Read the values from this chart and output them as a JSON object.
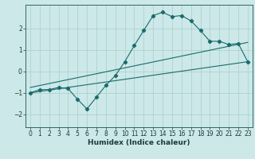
{
  "xlabel": "Humidex (Indice chaleur)",
  "background_color": "#cce8e8",
  "grid_color": "#aacece",
  "line_color": "#1a6b6b",
  "x_values": [
    0,
    1,
    2,
    3,
    4,
    5,
    6,
    7,
    8,
    9,
    10,
    11,
    12,
    13,
    14,
    15,
    16,
    17,
    18,
    19,
    20,
    21,
    22,
    23
  ],
  "main_y": [
    -1.0,
    -0.85,
    -0.85,
    -0.75,
    -0.8,
    -1.3,
    -1.75,
    -1.2,
    -0.65,
    -0.2,
    0.45,
    1.2,
    1.9,
    2.6,
    2.75,
    2.55,
    2.6,
    2.35,
    1.9,
    1.4,
    1.4,
    1.25,
    1.3,
    0.45
  ],
  "straight_line1_x": [
    0,
    23
  ],
  "straight_line1_y": [
    -1.0,
    0.45
  ],
  "straight_line2_x": [
    0,
    23
  ],
  "straight_line2_y": [
    -0.75,
    1.35
  ],
  "ylim": [
    -2.6,
    3.1
  ],
  "xlim": [
    -0.5,
    23.5
  ],
  "yticks": [
    -2,
    -1,
    0,
    1,
    2
  ],
  "xticks": [
    0,
    1,
    2,
    3,
    4,
    5,
    6,
    7,
    8,
    9,
    10,
    11,
    12,
    13,
    14,
    15,
    16,
    17,
    18,
    19,
    20,
    21,
    22,
    23
  ],
  "xlabel_fontsize": 6.5,
  "tick_labelsize": 5.5
}
